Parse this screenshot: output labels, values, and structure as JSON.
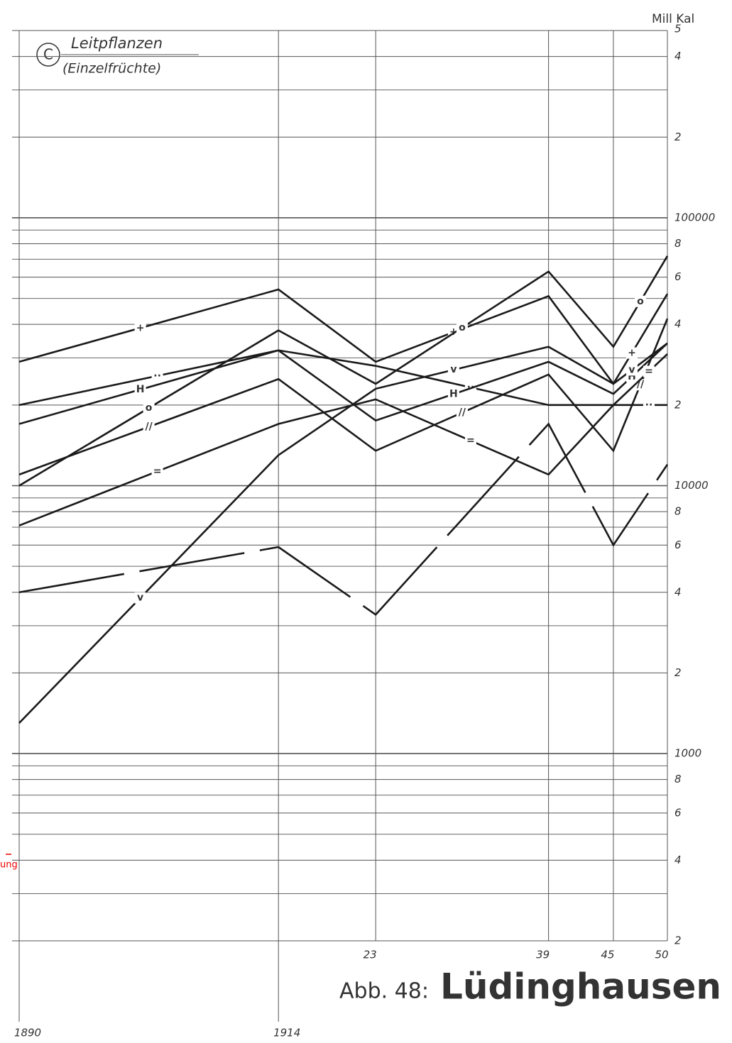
{
  "chart_data": {
    "type": "line",
    "panel_label": "C",
    "subtitle": "Leitpflanzen",
    "subtitle_note": "(Einzelfrüchte)",
    "figure_label": "Abb. 48:",
    "title": "Lüdinghausen",
    "y_axis_label": "Mill Kal",
    "annotation": "ung",
    "log_scale_y": true,
    "grid": true,
    "color": "#1a1a1a",
    "xlim": [
      1890,
      1950
    ],
    "xticks": [
      1890,
      1914,
      {
        "value": 1923,
        "label": "23"
      },
      {
        "value": 1939,
        "label": "39"
      },
      {
        "value": 1945,
        "label": "45"
      },
      {
        "value": 1950,
        "label": "50"
      }
    ],
    "x": [
      1890,
      1914,
      1923,
      1939,
      1945,
      1950
    ],
    "ylim": [
      200,
      500000
    ],
    "yticks": [
      {
        "value": 500000,
        "label": "5"
      },
      {
        "value": 400000,
        "label": "4"
      },
      {
        "value": 200000,
        "label": "2"
      },
      100000,
      {
        "value": 80000,
        "label": "8"
      },
      {
        "value": 60000,
        "label": "6"
      },
      {
        "value": 40000,
        "label": "4"
      },
      {
        "value": 20000,
        "label": "2"
      },
      10000,
      {
        "value": 8000,
        "label": "8"
      },
      {
        "value": 6000,
        "label": "6"
      },
      {
        "value": 4000,
        "label": "4"
      },
      {
        "value": 2000,
        "label": "2"
      },
      1000,
      {
        "value": 800,
        "label": "8"
      },
      {
        "value": 600,
        "label": "6"
      },
      {
        "value": 400,
        "label": "4"
      },
      {
        "value": 200,
        "label": "2"
      }
    ],
    "yminor": [
      300000,
      90000,
      70000,
      50000,
      30000,
      9000,
      7000,
      5000,
      3000,
      900,
      700,
      500,
      300
    ],
    "series": [
      {
        "marker": "+",
        "values": [
          29000,
          54000,
          29000,
          51000,
          24000,
          52000
        ]
      },
      {
        "marker": "o",
        "values": [
          10000,
          38000,
          24000,
          63000,
          33000,
          72000
        ]
      },
      {
        "marker": "··",
        "values": [
          20000,
          32000,
          28000,
          20000,
          20000,
          20000
        ]
      },
      {
        "marker": "H",
        "values": [
          17000,
          32000,
          17500,
          29000,
          22000,
          34000
        ]
      },
      {
        "marker": "//",
        "values": [
          11000,
          25000,
          13500,
          26000,
          13500,
          42000
        ]
      },
      {
        "marker": "=",
        "values": [
          7100,
          17000,
          21000,
          11000,
          20000,
          31000
        ]
      },
      {
        "marker": "v",
        "values": [
          1300,
          13000,
          23000,
          33000,
          24000,
          34000
        ]
      },
      {
        "dashed": true,
        "values": [
          4000,
          5900,
          3300,
          17000,
          6000,
          12000
        ]
      }
    ]
  }
}
